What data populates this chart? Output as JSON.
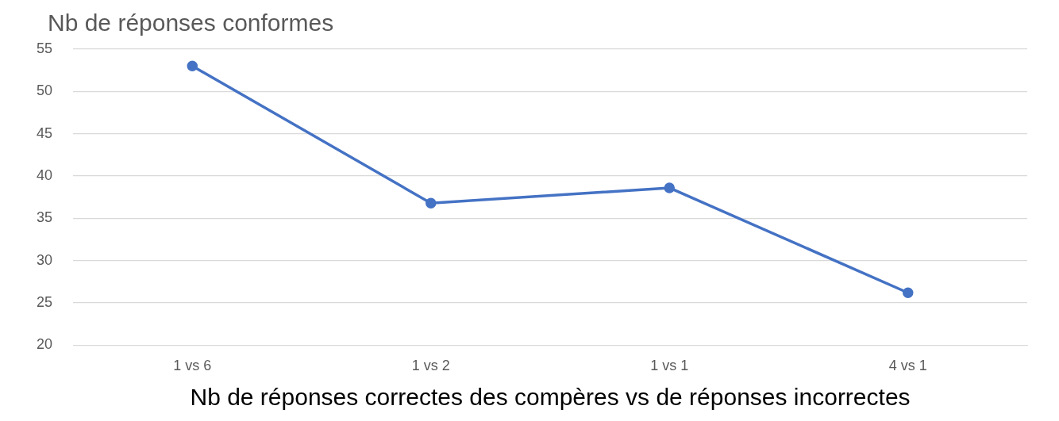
{
  "chart_data": {
    "type": "line",
    "ylabel": "Nb de réponses conformes",
    "xlabel": "Nb de réponses correctes des compères vs de réponses incorrectes",
    "categories": [
      "1 vs 6",
      "1 vs 2",
      "1 vs 1",
      "4 vs 1"
    ],
    "series": [
      {
        "color": "#4472c4",
        "values": [
          53,
          36.8,
          38.6,
          26.2
        ]
      }
    ],
    "ylim": [
      20,
      55
    ],
    "yticks": [
      20,
      25,
      30,
      35,
      40,
      45,
      50,
      55
    ],
    "grid": "y",
    "legend": false,
    "marker": "circle",
    "line_style": "solid"
  }
}
